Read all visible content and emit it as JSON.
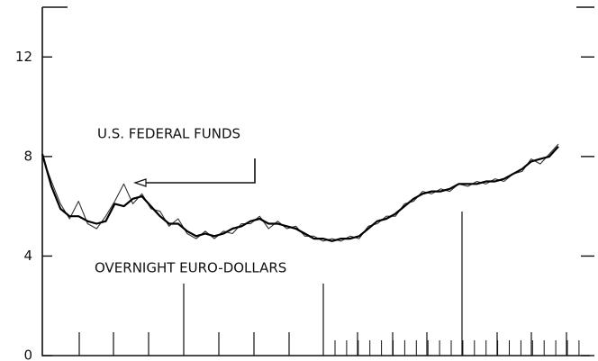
{
  "chart_data": {
    "type": "line",
    "series": [
      {
        "name": "U.S. FEDERAL FUNDS",
        "color": "#333",
        "width": 1.1,
        "values": [
          8.0,
          7.0,
          6.1,
          5.5,
          6.2,
          5.3,
          5.1,
          5.6,
          6.2,
          6.9,
          6.1,
          6.5,
          5.9,
          5.8,
          5.2,
          5.5,
          4.9,
          4.7,
          5.0,
          4.7,
          5.0,
          4.9,
          5.3,
          5.3,
          5.6,
          5.1,
          5.4,
          5.1,
          5.2,
          4.8,
          4.8,
          4.6,
          4.7,
          4.6,
          4.8,
          4.7,
          5.2,
          5.3,
          5.6,
          5.6,
          6.1,
          6.2,
          6.6,
          6.5,
          6.7,
          6.6,
          6.9,
          6.8,
          7.0,
          6.9,
          7.1,
          7.0,
          7.3,
          7.4,
          7.9,
          7.7,
          8.1,
          8.5
        ]
      },
      {
        "name": "OVERNIGHT EURO-DOLLARS",
        "color": "#000",
        "width": 2.2,
        "values": [
          8.1,
          6.8,
          5.9,
          5.6,
          5.6,
          5.4,
          5.3,
          5.4,
          6.1,
          6.0,
          6.3,
          6.4,
          6.0,
          5.6,
          5.3,
          5.3,
          5.0,
          4.8,
          4.9,
          4.8,
          4.9,
          5.1,
          5.2,
          5.4,
          5.5,
          5.3,
          5.3,
          5.2,
          5.1,
          4.9,
          4.7,
          4.7,
          4.6,
          4.7,
          4.7,
          4.8,
          5.1,
          5.4,
          5.5,
          5.7,
          6.0,
          6.3,
          6.5,
          6.6,
          6.6,
          6.7,
          6.9,
          6.9,
          6.9,
          7.0,
          7.0,
          7.1,
          7.3,
          7.5,
          7.8,
          7.9,
          8.0,
          8.4
        ]
      }
    ],
    "ylim": [
      0,
      14
    ],
    "yticks": [
      0,
      4,
      8,
      12
    ]
  }
}
